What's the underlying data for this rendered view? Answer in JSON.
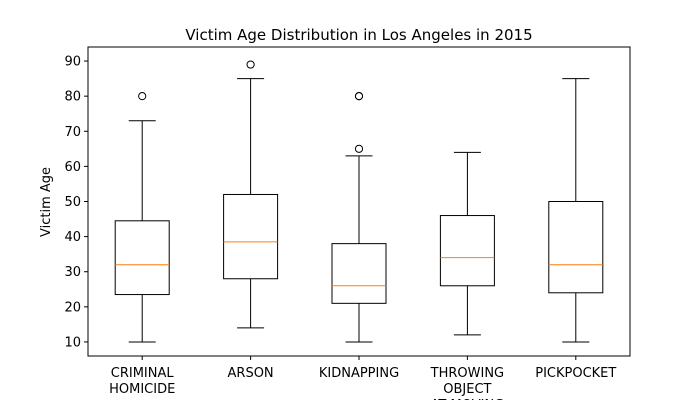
{
  "chart_data": {
    "type": "box",
    "title": "Victim Age Distribution in Los Angeles in 2015",
    "xlabel": "",
    "ylabel": "Victim Age",
    "ylim": [
      6,
      94
    ],
    "yticks": [
      10,
      20,
      30,
      40,
      50,
      60,
      70,
      80,
      90
    ],
    "grid": false,
    "median_color": "#ff7f0e",
    "categories": [
      [
        "CRIMINAL",
        "HOMICIDE"
      ],
      [
        "ARSON"
      ],
      [
        "KIDNAPPING"
      ],
      [
        "THROWING",
        "OBJECT",
        "AT MOVING"
      ],
      [
        "PICKPOCKET"
      ]
    ],
    "boxes": [
      {
        "whisker_low": 10,
        "q1": 23.5,
        "median": 32,
        "q3": 44.5,
        "whisker_high": 73,
        "outliers": [
          80
        ]
      },
      {
        "whisker_low": 14,
        "q1": 28,
        "median": 38.5,
        "q3": 52,
        "whisker_high": 85,
        "outliers": [
          89
        ]
      },
      {
        "whisker_low": 10,
        "q1": 21,
        "median": 26,
        "q3": 38,
        "whisker_high": 63,
        "outliers": [
          65,
          80,
          80
        ]
      },
      {
        "whisker_low": 12,
        "q1": 26,
        "median": 34,
        "q3": 46,
        "whisker_high": 64,
        "outliers": []
      },
      {
        "whisker_low": 10,
        "q1": 24,
        "median": 32,
        "q3": 50,
        "whisker_high": 85,
        "outliers": []
      }
    ]
  }
}
